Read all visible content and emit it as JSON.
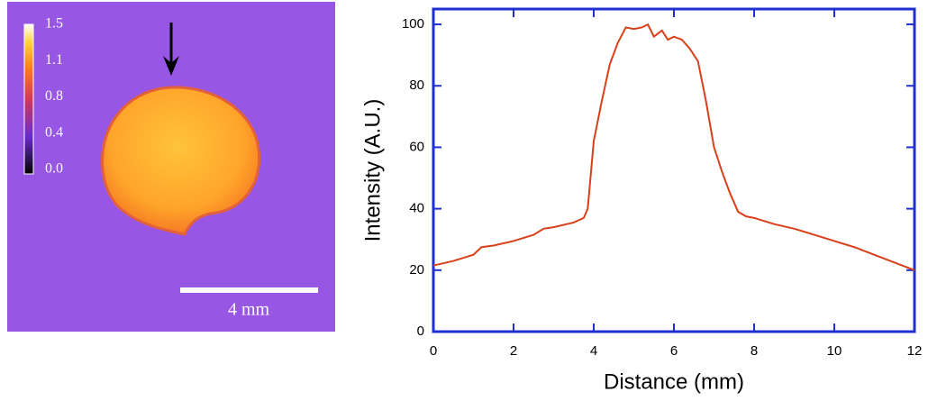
{
  "chart_data": [
    {
      "type": "image",
      "colorbar_ticks": [
        1.5,
        1.1,
        0.8,
        0.4,
        {
          "value": 0,
          "label": "0.0"
        }
      ],
      "scale_bar_label": "4 mm"
    },
    {
      "type": "line",
      "x_label": "Distance (mm)",
      "y_label": "Intensity (A.U.)",
      "color": "#d8401a",
      "x": [
        0,
        0.5,
        1,
        1.2,
        1.5,
        2,
        2.5,
        2.75,
        3,
        3.5,
        3.75,
        3.85,
        4,
        4.2,
        4.4,
        4.6,
        4.8,
        5,
        5.2,
        5.35,
        5.5,
        5.7,
        5.85,
        6,
        6.2,
        6.4,
        6.6,
        6.8,
        7,
        7.2,
        7.4,
        7.6,
        7.8,
        8,
        8.5,
        9,
        9.5,
        10,
        10.5,
        11,
        11.5,
        12
      ],
      "values": [
        21.5,
        23,
        25,
        27.5,
        28,
        29.5,
        31.5,
        33.5,
        34,
        35.5,
        37,
        40,
        62,
        75,
        87,
        94,
        99,
        98.5,
        99,
        100,
        96,
        98,
        95,
        96,
        95,
        92,
        88,
        75,
        60,
        52,
        45,
        39,
        37.5,
        37,
        35,
        33.5,
        31.5,
        29.5,
        27.5,
        25,
        22.5,
        20
      ],
      "xlim": [
        0,
        12
      ],
      "ylim": [
        0,
        105
      ],
      "xticks": [
        0,
        2,
        4,
        6,
        8,
        10,
        12
      ],
      "yticks": [
        0,
        20,
        40,
        60,
        80,
        100
      ],
      "frame_color": "#1f2fd0"
    }
  ]
}
